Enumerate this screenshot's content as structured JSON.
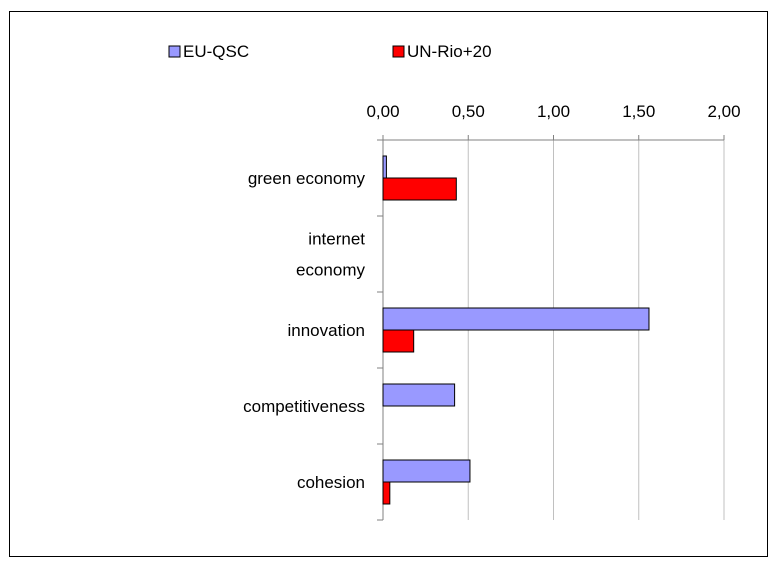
{
  "chart_data": {
    "type": "bar",
    "orientation": "horizontal",
    "title": "",
    "xlabel": "",
    "ylabel": "",
    "xlim": [
      0,
      2
    ],
    "x_ticks": [
      "0,00",
      "0,50",
      "1,00",
      "1,50",
      "2,00"
    ],
    "x_tick_values": [
      0,
      0.5,
      1,
      1.5,
      2
    ],
    "x_axis_position": "top",
    "grid": "vertical",
    "legend_position": "top",
    "categories": [
      [
        "green economy"
      ],
      [
        "internet",
        "economy"
      ],
      [
        "innovation"
      ],
      [
        "competitiveness"
      ],
      [
        "cohesion"
      ]
    ],
    "series": [
      {
        "name": "EU-QSC",
        "color": "#9999FF",
        "values": [
          0.02,
          0,
          1.56,
          0.42,
          0.51
        ]
      },
      {
        "name": "UN-Rio+20",
        "color": "#FF0000",
        "values": [
          0.43,
          0,
          0.18,
          0,
          0.04
        ]
      }
    ]
  }
}
